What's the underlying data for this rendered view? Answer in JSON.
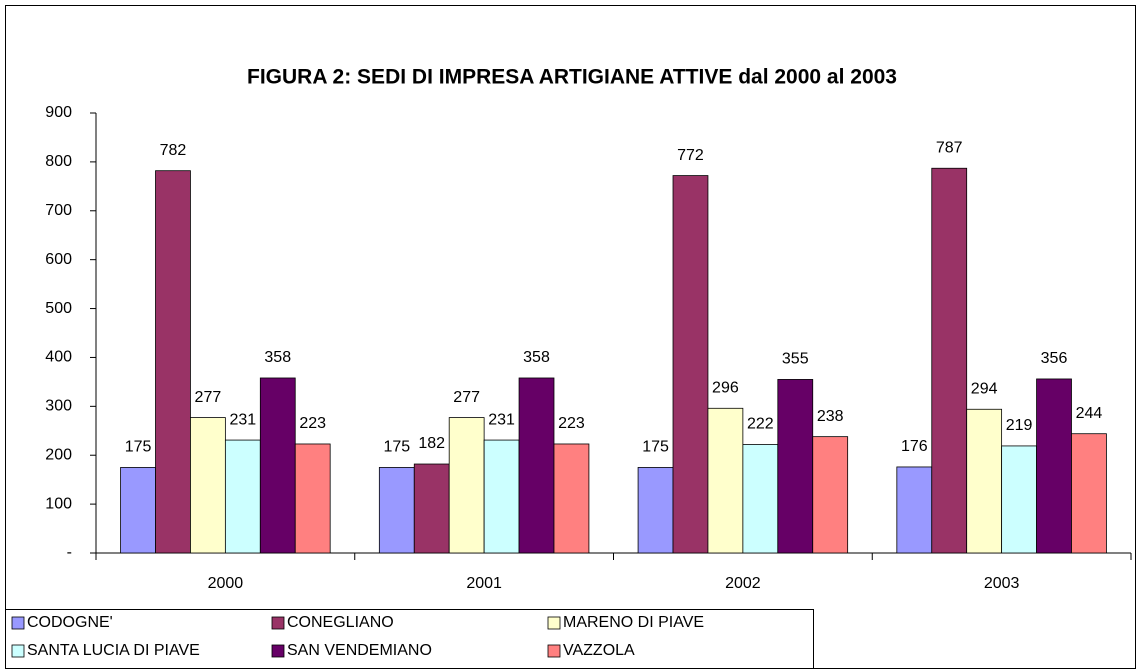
{
  "chart_data": {
    "type": "bar",
    "title": "FIGURA 2: SEDI DI IMPRESA ARTIGIANE ATTIVE dal 2000 al 2003",
    "categories": [
      "2000",
      "2001",
      "2002",
      "2003"
    ],
    "series": [
      {
        "name": "CODOGNE'",
        "color": "#9999ff",
        "values": [
          175,
          175,
          175,
          176
        ]
      },
      {
        "name": "CONEGLIANO",
        "color": "#993366",
        "values": [
          782,
          182,
          772,
          787
        ]
      },
      {
        "name": "MARENO DI PIAVE",
        "color": "#ffffcc",
        "values": [
          277,
          277,
          296,
          294
        ]
      },
      {
        "name": "SANTA LUCIA DI PIAVE",
        "color": "#ccffff",
        "values": [
          231,
          231,
          222,
          219
        ]
      },
      {
        "name": "SAN VENDEMIANO",
        "color": "#660066",
        "values": [
          358,
          358,
          355,
          356
        ]
      },
      {
        "name": "VAZZOLA",
        "color": "#ff8080",
        "values": [
          223,
          223,
          238,
          244
        ]
      }
    ],
    "ylim": [
      0,
      900
    ],
    "yticks": [
      {
        "value": 0,
        "label": "-"
      },
      100,
      200,
      300,
      400,
      500,
      600,
      700,
      800,
      900
    ],
    "grid": false,
    "legend": "bottom"
  }
}
